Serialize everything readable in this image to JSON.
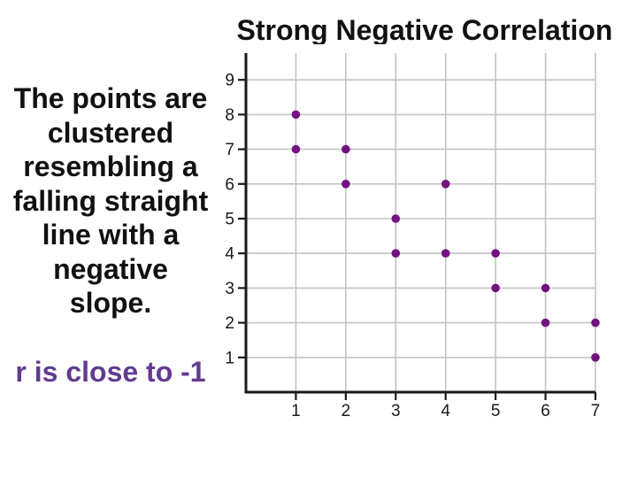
{
  "slide": {
    "title": "Strong Negative Correlation",
    "body_text": "The points are\nclustered\nresembling a\nfalling straight\nline with a\nnegative\nslope.",
    "r_note": "r is close to -1"
  },
  "colors": {
    "title_text": "#111111",
    "body_text": "#111111",
    "r_note_text": "#633a91",
    "point": "#73137f",
    "grid": "#c3c3c3",
    "axis": "#1a1a1a",
    "tick_label": "#1a1a1a",
    "background": "#ffffff"
  },
  "chart_data": {
    "type": "scatter",
    "title": "Strong Negative Correlation",
    "xlabel": "",
    "ylabel": "",
    "points": [
      [
        1,
        8
      ],
      [
        1,
        7
      ],
      [
        2,
        7
      ],
      [
        2,
        6
      ],
      [
        3,
        5
      ],
      [
        3,
        4
      ],
      [
        4,
        6
      ],
      [
        4,
        4
      ],
      [
        5,
        4
      ],
      [
        5,
        3
      ],
      [
        6,
        3
      ],
      [
        6,
        2
      ],
      [
        7,
        2
      ],
      [
        7,
        1
      ]
    ],
    "x_ticks": [
      "1",
      "2",
      "3",
      "4",
      "5",
      "6",
      "7"
    ],
    "y_ticks": [
      "1",
      "2",
      "3",
      "4",
      "5",
      "6",
      "7",
      "8",
      "9"
    ],
    "xlim": [
      0,
      7.1
    ],
    "ylim": [
      0,
      9.8
    ],
    "grid": "on",
    "legend": "none",
    "marker": "filled-circle"
  }
}
